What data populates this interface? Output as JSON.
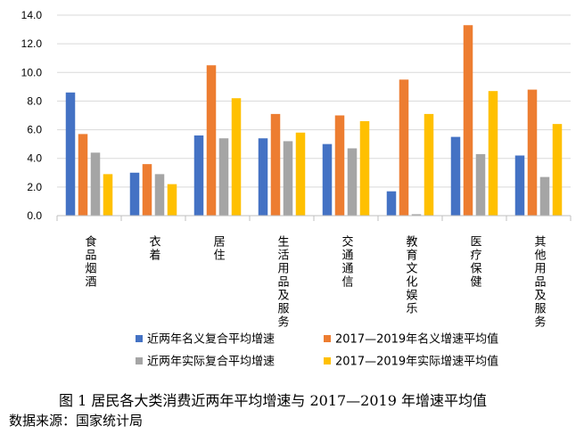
{
  "caption": "图 1   居民各大类消费近两年平均增速与 2017—2019 年增速平均值",
  "source": "数据来源：国家统计局",
  "chart_data": {
    "type": "bar",
    "categories": [
      "食品烟酒",
      "衣着",
      "居住",
      "生活用品及服务",
      "交通通信",
      "教育文化娱乐",
      "医疗保健",
      "其他用品及服务"
    ],
    "ylim": [
      0,
      14
    ],
    "yticks": [
      "0.0",
      "2.0",
      "4.0",
      "6.0",
      "8.0",
      "10.0",
      "12.0",
      "14.0"
    ],
    "grid": true,
    "legend_position": "bottom",
    "series": [
      {
        "name": "近两年名义复合平均增速",
        "color": "#4472C4",
        "values": [
          8.6,
          3.0,
          5.6,
          5.4,
          5.0,
          1.7,
          5.5,
          4.2
        ]
      },
      {
        "name": "2017—2019年名义增速平均值",
        "color": "#ED7D31",
        "values": [
          5.7,
          3.6,
          10.5,
          7.1,
          7.0,
          9.5,
          13.3,
          8.8
        ]
      },
      {
        "name": "近两年实际复合平均增速",
        "color": "#A5A5A5",
        "values": [
          4.4,
          2.9,
          5.4,
          5.2,
          4.7,
          0.1,
          4.3,
          2.7
        ]
      },
      {
        "name": "2017—2019年实际增速平均值",
        "color": "#FFC000",
        "values": [
          2.9,
          2.2,
          8.2,
          5.8,
          6.6,
          7.1,
          8.7,
          6.4
        ]
      }
    ]
  }
}
